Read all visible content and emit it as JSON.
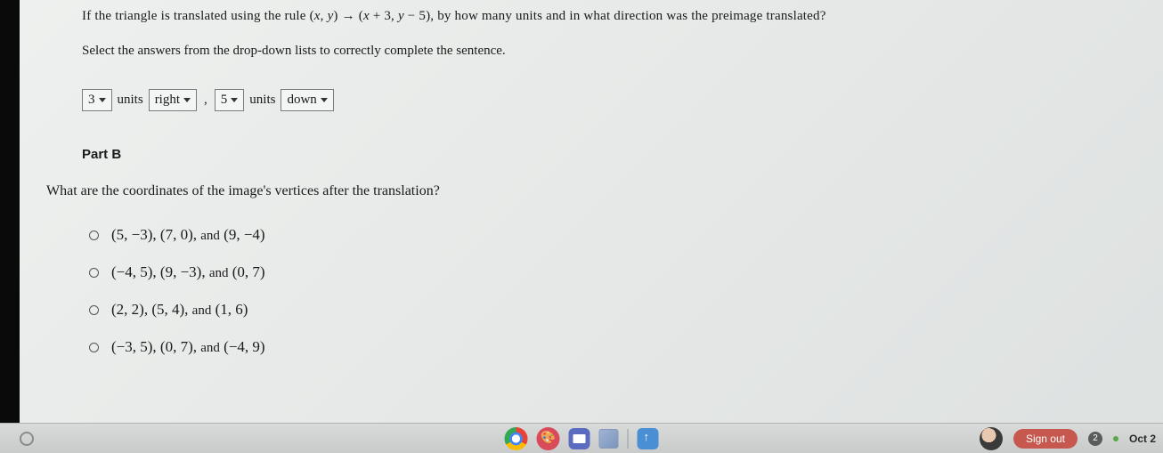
{
  "question": {
    "prefix": "If the triangle is translated using the rule ",
    "rule_open": "(",
    "rule_x": "x",
    "rule_sep1": ", ",
    "rule_y": "y",
    "rule_close": ")",
    "arrow": " → ",
    "rule2_open": "(",
    "rule2_x": "x",
    "rule2_plus": " + 3, ",
    "rule2_y": "y",
    "rule2_minus": " − 5",
    "rule2_close": ")",
    "suffix": ", by how many units and in what direction was the preimage translated?"
  },
  "instruction": "Select the answers from the drop-down lists to correctly complete the sentence.",
  "answer_row": {
    "dd1": "3",
    "units1": "units",
    "dd2": "right",
    "comma": ",",
    "dd3": "5",
    "units2": "units",
    "dd4": "down"
  },
  "part_b": {
    "label": "Part B",
    "question": "What are the coordinates of the image's vertices after the translation?",
    "options": [
      {
        "c1": "(5, −3)",
        "c2": "(7, 0)",
        "and": "and",
        "c3": "(9, −4)"
      },
      {
        "c1": "(−4, 5)",
        "c2": "(9, −3)",
        "and": "and",
        "c3": "(0, 7)"
      },
      {
        "c1": "(2, 2)",
        "c2": "(5, 4)",
        "and": "and",
        "c3": "(1, 6)"
      },
      {
        "c1": "(−3, 5)",
        "c2": "(0, 7)",
        "and": "and",
        "c3": "(−4, 9)"
      }
    ]
  },
  "taskbar": {
    "signout": "Sign out",
    "badge": "2",
    "date": "Oct 2"
  }
}
